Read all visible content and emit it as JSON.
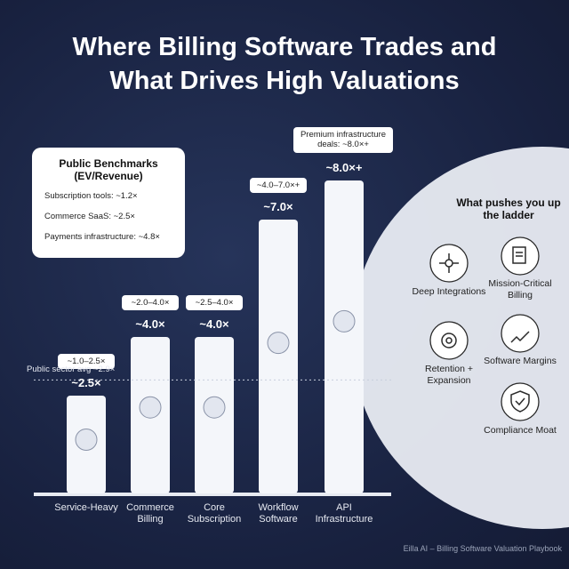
{
  "chart_data": {
    "type": "bar",
    "title": "Where Billing Software Trades and What Drives High Valuations",
    "categories": [
      "Service-Heavy",
      "Commerce Billing",
      "Core Subscription",
      "Workflow Software",
      "API Infrastructure"
    ],
    "values": [
      2.5,
      4.0,
      4.0,
      7.0,
      8.0
    ],
    "value_labels": [
      "~2.5×",
      "~4.0×",
      "~4.0×",
      "~7.0×",
      "~8.0×+"
    ],
    "range_labels": [
      "~1.0–2.5×",
      "~2.0–4.0×",
      "~2.5–4.0×",
      "~4.0–7.0×+",
      null
    ],
    "color": "#f4f6fa",
    "ylim": [
      0,
      9
    ],
    "reference_line": {
      "value": 2.9,
      "label": "Public sector avg ~2.9×"
    },
    "annotation": "Premium infrastructure deals: ~8.0×+"
  },
  "benchmarks": {
    "title": "Public Benchmarks (EV/Revenue)",
    "items": [
      "Subscription tools: ~1.2×",
      "Commerce SaaS: ~2.5×",
      "Payments infrastructure: ~4.8×"
    ]
  },
  "drivers": {
    "title": "What pushes you up the ladder",
    "items": [
      "Deep Integrations",
      "Mission-Critical Billing",
      "Retention + Expansion",
      "Software Margins",
      "Compliance Moat"
    ]
  },
  "footer": "Eilla AI – Billing Software Valuation Playbook"
}
